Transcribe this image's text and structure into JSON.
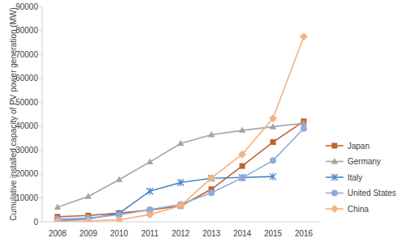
{
  "chart_data": {
    "type": "line",
    "y_label": "Cumulative installed capacity of PV power generation (MW)",
    "categories": [
      "2008",
      "2009",
      "2010",
      "2011",
      "2012",
      "2013",
      "2014",
      "2015",
      "2016"
    ],
    "series": [
      {
        "name": "Japan",
        "color": "#c0622b",
        "marker": "square",
        "values": [
          2100,
          2600,
          3600,
          4900,
          6600,
          13600,
          23300,
          33300,
          42000
        ]
      },
      {
        "name": "Germany",
        "color": "#a5a5a5",
        "marker": "triangle",
        "values": [
          6100,
          10600,
          17600,
          25000,
          32700,
          36400,
          38200,
          39700,
          41200
        ]
      },
      {
        "name": "Italy",
        "color": "#4a86c5",
        "marker": "star",
        "values": [
          460,
          1200,
          3500,
          12800,
          16400,
          18200,
          18500,
          18900,
          null
        ]
      },
      {
        "name": "United States",
        "color": "#8faadc",
        "marker": "circle",
        "values": [
          1200,
          1600,
          2900,
          5100,
          7300,
          12100,
          18300,
          25600,
          39000
        ]
      },
      {
        "name": "China",
        "color": "#f4b183",
        "marker": "diamond",
        "values": [
          140,
          300,
          800,
          3000,
          6700,
          18300,
          28200,
          43200,
          77400
        ]
      }
    ],
    "ylim": [
      0,
      90000
    ],
    "yticks": [
      0,
      10000,
      20000,
      30000,
      40000,
      50000,
      60000,
      70000,
      80000,
      90000
    ],
    "grid": false,
    "legend": "right"
  }
}
